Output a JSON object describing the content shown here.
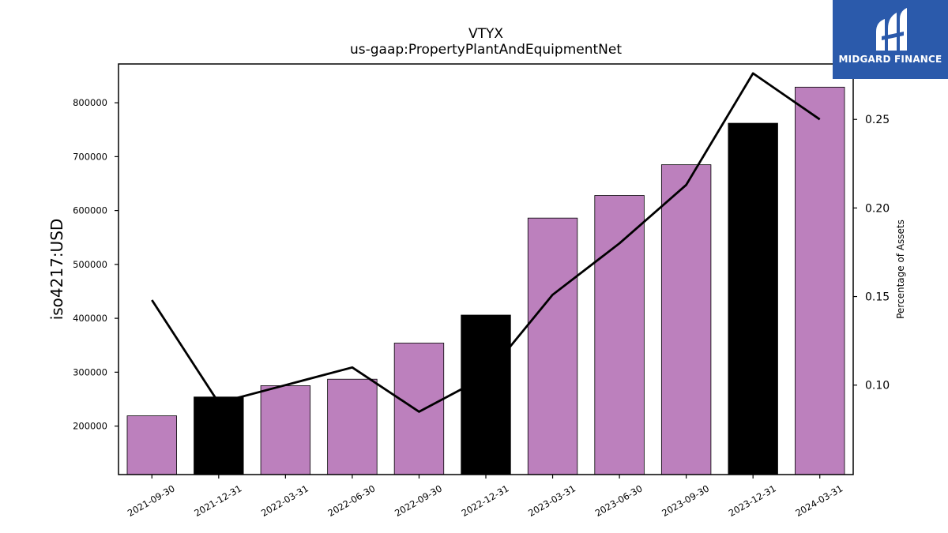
{
  "chart_data": {
    "type": "bar",
    "title": "VTYX",
    "subtitle": "us-gaap:PropertyPlantAndEquipmentNet",
    "ylabel": "iso4217:USD",
    "y2label": "Percentage of Assets",
    "categories": [
      "2021-09-30",
      "2021-12-31",
      "2022-03-31",
      "2022-06-30",
      "2022-09-30",
      "2022-12-31",
      "2023-03-31",
      "2023-06-30",
      "2023-09-30",
      "2023-12-31",
      "2024-03-31"
    ],
    "series": [
      {
        "type": "bar",
        "values": [
          219000,
          254000,
          275000,
          287000,
          354000,
          406000,
          586000,
          628000,
          685000,
          762000,
          829000
        ],
        "colors": [
          "#bc80bd",
          "#000000",
          "#bc80bd",
          "#bc80bd",
          "#bc80bd",
          "#000000",
          "#bc80bd",
          "#bc80bd",
          "#bc80bd",
          "#000000",
          "#bc80bd"
        ]
      },
      {
        "type": "line",
        "axis": "right",
        "color": "#000000",
        "values": [
          0.148,
          0.09,
          0.1,
          0.11,
          0.085,
          0.105,
          0.151,
          0.18,
          0.213,
          0.276,
          0.25
        ]
      }
    ],
    "ylim": [
      110000,
      872000
    ],
    "yticks": [
      200000,
      300000,
      400000,
      500000,
      600000,
      700000,
      800000
    ],
    "y2lim": [
      0.0495,
      0.2813
    ],
    "y2ticks": [
      0.1,
      0.15,
      0.2,
      0.25
    ],
    "grid": false
  },
  "logo": {
    "text": "MIDGARD FINANCE",
    "icon": "midgard-logo-icon",
    "background": "#2b5aab"
  }
}
